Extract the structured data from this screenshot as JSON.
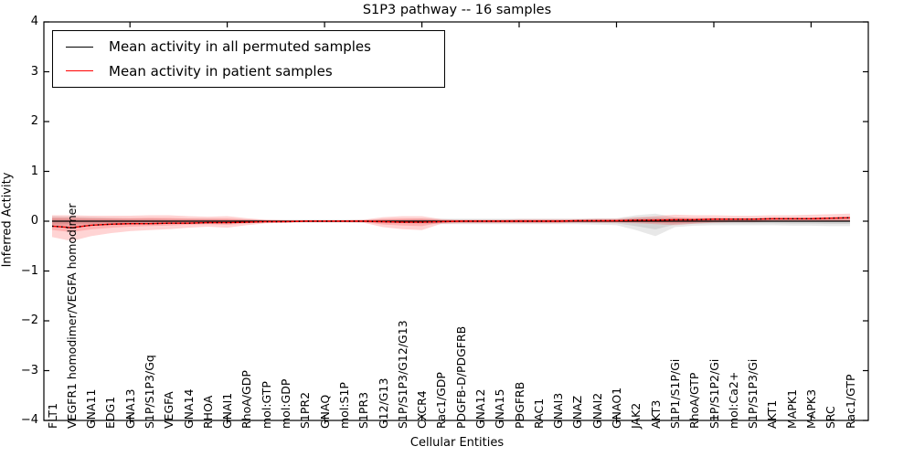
{
  "title": "S1P3 pathway -- 16 samples",
  "axes": {
    "x_label": "Cellular Entities",
    "y_label": "Inferred Activity",
    "y_ticks": [
      "4",
      "3",
      "2",
      "1",
      "0",
      "−1",
      "−2",
      "−3",
      "−4"
    ],
    "y_tick_values": [
      4,
      3,
      2,
      1,
      0,
      -1,
      -2,
      -3,
      -4
    ]
  },
  "legend": {
    "entries": [
      {
        "label": "Mean activity in all permuted samples",
        "color": "#000000"
      },
      {
        "label": "Mean activity in patient samples",
        "color": "#ff0000"
      }
    ]
  },
  "colors": {
    "permuted_line": "#000000",
    "patient_line": "#ff0000",
    "permuted_band": "rgba(0,0,0,0.09)",
    "patient_band": "rgba(255,0,0,0.17)",
    "frame": "#000000",
    "background": "#ffffff"
  },
  "chart_data": {
    "type": "line",
    "title": "S1P3 pathway -- 16 samples",
    "xlabel": "Cellular Entities",
    "ylabel": "Inferred Activity",
    "ylim": [
      -4,
      4
    ],
    "grid": false,
    "legend_position": "upper left",
    "x_major_tick_indices": [
      4,
      9,
      14,
      19,
      24,
      29,
      34,
      39
    ],
    "categories": [
      "FLT1",
      "VEGFR1 homodimer/VEGFA homodimer",
      "GNA11",
      "EDG1",
      "GNA13",
      "S1P/S1P3/Gq",
      "VEGFA",
      "GNA14",
      "RHOA",
      "GNAI1",
      "RhoA/GDP",
      "mol:GTP",
      "mol:GDP",
      "S1PR2",
      "GNAQ",
      "mol:S1P",
      "S1PR3",
      "G12/G13",
      "S1P/S1P3/G12/G13",
      "CXCR4",
      "Rac1/GDP",
      "PDGFB-D/PDGFRB",
      "GNA12",
      "GNA15",
      "PDGFRB",
      "RAC1",
      "GNAI3",
      "GNAZ",
      "GNAI2",
      "GNAO1",
      "JAK2",
      "AKT3",
      "S1P1/S1P/Gi",
      "RhoA/GTP",
      "S1P/S1P2/Gi",
      "mol:Ca2+",
      "S1P/S1P3/Gi",
      "AKT1",
      "MAPK1",
      "MAPK3",
      "SRC",
      "Rac1/GTP"
    ],
    "series": [
      {
        "name": "Mean activity in all permuted samples",
        "color": "#000000",
        "values": [
          0,
          0,
          0,
          0,
          0,
          0,
          0,
          0,
          0,
          0,
          0,
          0,
          0,
          0,
          0,
          0,
          0,
          0,
          0,
          0,
          0,
          0,
          0,
          0,
          0,
          0,
          0,
          0,
          0,
          0,
          0,
          0,
          0,
          0,
          0,
          0,
          0,
          0,
          0,
          0,
          0,
          0
        ]
      },
      {
        "name": "Mean activity in patient samples",
        "color": "#ff0000",
        "values": [
          -0.1,
          -0.13,
          -0.08,
          -0.06,
          -0.05,
          -0.05,
          -0.04,
          -0.04,
          -0.03,
          -0.03,
          -0.02,
          -0.01,
          -0.01,
          0,
          0,
          0,
          0,
          -0.01,
          -0.02,
          -0.02,
          -0.01,
          0,
          0,
          0,
          0,
          0,
          0,
          0.01,
          0.01,
          0.01,
          0.02,
          0.02,
          0.03,
          0.03,
          0.04,
          0.04,
          0.04,
          0.05,
          0.05,
          0.05,
          0.06,
          0.07
        ]
      }
    ],
    "bands": [
      {
        "name": "permuted-samples-spread",
        "color": "rgba(0,0,0,0.09)",
        "lo": [
          -0.12,
          -0.1,
          -0.09,
          -0.08,
          -0.07,
          -0.06,
          -0.06,
          -0.05,
          -0.05,
          -0.04,
          -0.04,
          -0.03,
          -0.03,
          -0.03,
          -0.03,
          -0.03,
          -0.03,
          -0.04,
          -0.04,
          -0.05,
          -0.06,
          -0.06,
          -0.06,
          -0.06,
          -0.06,
          -0.06,
          -0.06,
          -0.06,
          -0.07,
          -0.08,
          -0.18,
          -0.3,
          -0.12,
          -0.09,
          -0.08,
          -0.08,
          -0.08,
          -0.08,
          -0.09,
          -0.09,
          -0.1,
          -0.1
        ],
        "hi": [
          0.1,
          0.09,
          0.08,
          0.07,
          0.06,
          0.06,
          0.05,
          0.05,
          0.05,
          0.04,
          0.04,
          0.03,
          0.03,
          0.03,
          0.03,
          0.03,
          0.03,
          0.04,
          0.04,
          0.05,
          0.05,
          0.05,
          0.05,
          0.05,
          0.05,
          0.05,
          0.05,
          0.05,
          0.06,
          0.06,
          0.12,
          0.15,
          0.08,
          0.06,
          0.06,
          0.06,
          0.06,
          0.06,
          0.06,
          0.06,
          0.06,
          0.05
        ]
      },
      {
        "name": "patient-samples-spread",
        "color": "rgba(255,0,0,0.17)",
        "lo": [
          -0.32,
          -0.4,
          -0.3,
          -0.24,
          -0.2,
          -0.18,
          -0.16,
          -0.13,
          -0.11,
          -0.13,
          -0.08,
          -0.04,
          -0.03,
          -0.02,
          -0.02,
          -0.02,
          -0.03,
          -0.12,
          -0.16,
          -0.18,
          -0.05,
          -0.04,
          -0.04,
          -0.04,
          -0.04,
          -0.04,
          -0.04,
          -0.03,
          -0.03,
          -0.03,
          -0.04,
          -0.06,
          -0.08,
          -0.05,
          -0.03,
          -0.02,
          -0.02,
          -0.01,
          0.0,
          0.0,
          0.0,
          0.01
        ],
        "hi": [
          0.12,
          0.12,
          0.11,
          0.11,
          0.11,
          0.12,
          0.12,
          0.1,
          0.09,
          0.1,
          0.06,
          0.03,
          0.02,
          0.02,
          0.02,
          0.02,
          0.03,
          0.08,
          0.1,
          0.1,
          0.04,
          0.03,
          0.03,
          0.03,
          0.04,
          0.04,
          0.04,
          0.04,
          0.05,
          0.05,
          0.08,
          0.1,
          0.13,
          0.12,
          0.12,
          0.11,
          0.11,
          0.12,
          0.12,
          0.13,
          0.14,
          0.15
        ]
      }
    ]
  }
}
